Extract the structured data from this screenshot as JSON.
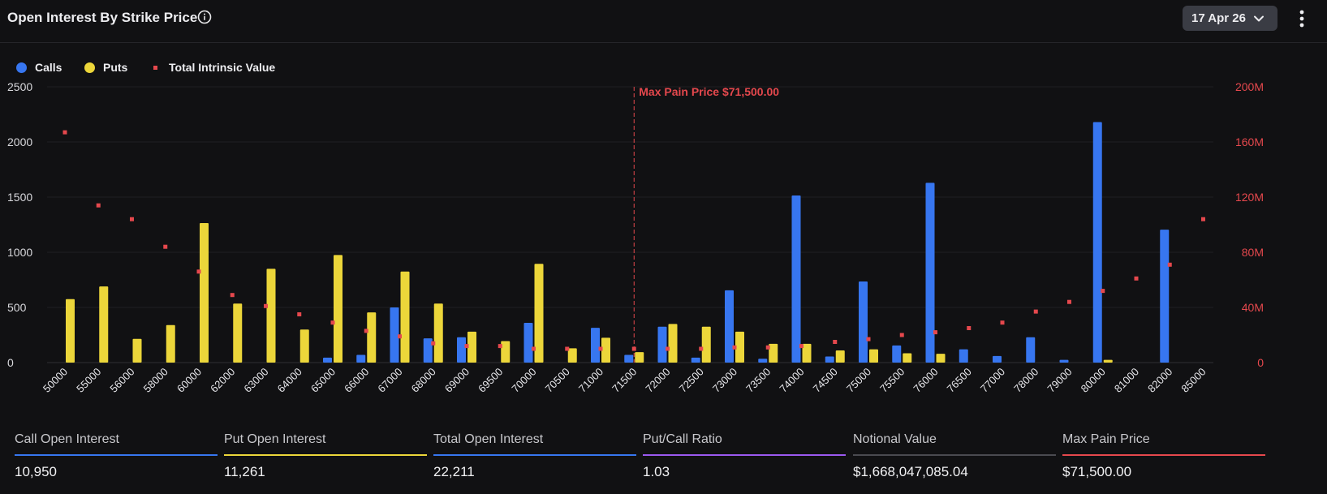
{
  "header": {
    "title": "Open Interest By Strike Price",
    "date_selector": "17 Apr 26"
  },
  "legend": {
    "calls": "Calls",
    "puts": "Puts",
    "intrinsic": "Total Intrinsic Value"
  },
  "colors": {
    "calls": "#3776f0",
    "puts": "#ecd63a",
    "intrinsic": "#e5484d",
    "ratio": "#9b59f0",
    "notional": "#4a4a50"
  },
  "chart_data": {
    "type": "bar",
    "categories": [
      "50000",
      "55000",
      "56000",
      "58000",
      "60000",
      "62000",
      "63000",
      "64000",
      "65000",
      "66000",
      "67000",
      "68000",
      "69000",
      "69500",
      "70000",
      "70500",
      "71000",
      "71500",
      "72000",
      "72500",
      "73000",
      "73500",
      "74000",
      "74500",
      "75000",
      "75500",
      "76000",
      "76500",
      "77000",
      "78000",
      "79000",
      "80000",
      "81000",
      "82000",
      "85000"
    ],
    "series": [
      {
        "name": "Calls",
        "values": [
          0,
          0,
          0,
          0,
          0,
          0,
          0,
          0,
          45,
          70,
          500,
          220,
          230,
          0,
          360,
          0,
          315,
          70,
          325,
          45,
          655,
          35,
          1515,
          55,
          735,
          155,
          1630,
          120,
          60,
          230,
          25,
          2180,
          0,
          1205,
          0
        ]
      },
      {
        "name": "Puts",
        "values": [
          575,
          690,
          215,
          340,
          1265,
          535,
          850,
          300,
          975,
          455,
          825,
          535,
          280,
          195,
          895,
          130,
          225,
          95,
          350,
          325,
          280,
          170,
          170,
          110,
          120,
          85,
          80,
          0,
          0,
          0,
          0,
          25,
          0,
          0,
          0
        ]
      },
      {
        "name": "Total Intrinsic Value",
        "axis": "right",
        "values": [
          167,
          114,
          104,
          84,
          66,
          49,
          41,
          35,
          29,
          23,
          19,
          14,
          12,
          12,
          10,
          10,
          10,
          10,
          10,
          10,
          11,
          11,
          12,
          15,
          17,
          20,
          22,
          25,
          29,
          37,
          44,
          52,
          61,
          71,
          104
        ]
      }
    ],
    "annotation": "Max Pain Price $71,500.00",
    "annotation_x": "71500",
    "y_left": {
      "ticks": [
        "0",
        "500",
        "1000",
        "1500",
        "2000",
        "2500"
      ],
      "range": [
        0,
        2500
      ]
    },
    "y_right": {
      "ticks": [
        "0",
        "40M",
        "80M",
        "120M",
        "160M",
        "200M"
      ],
      "range": [
        0,
        200
      ]
    },
    "legend": "top-left",
    "grid": true
  },
  "stats": [
    {
      "label": "Call Open Interest",
      "value": "10,950",
      "color": "#3776f0"
    },
    {
      "label": "Put Open Interest",
      "value": "11,261",
      "color": "#ecd63a"
    },
    {
      "label": "Total Open Interest",
      "value": "22,211",
      "color": "#3776f0"
    },
    {
      "label": "Put/Call Ratio",
      "value": "1.03",
      "color": "#9b59f0"
    },
    {
      "label": "Notional Value",
      "value": "$1,668,047,085.04",
      "color": "#4a4a50"
    },
    {
      "label": "Max Pain Price",
      "value": "$71,500.00",
      "color": "#e5484d"
    }
  ]
}
